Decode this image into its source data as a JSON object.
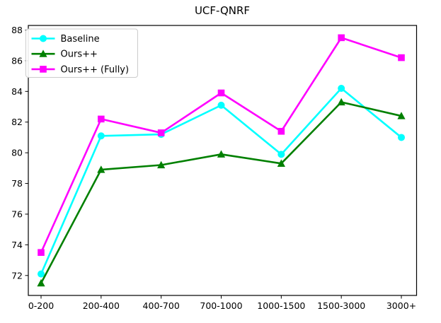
{
  "figure": {
    "background_color": "#ffffff",
    "axis_color": "#000000"
  },
  "chart_data": {
    "type": "line",
    "title": "UCF-QNRF",
    "xlabel": "",
    "ylabel": "",
    "categories": [
      "0-200",
      "200-400",
      "400-700",
      "700-1000",
      "1000-1500",
      "1500-3000",
      "3000+"
    ],
    "series": [
      {
        "name": "Baseline",
        "color": "#00ffff",
        "marker": "circle",
        "values": [
          72.1,
          81.1,
          81.2,
          83.1,
          79.9,
          84.2,
          81.0
        ]
      },
      {
        "name": "Ours++",
        "color": "#008000",
        "marker": "triangle",
        "values": [
          71.5,
          78.9,
          79.2,
          79.9,
          79.3,
          83.3,
          82.4
        ]
      },
      {
        "name": "Ours++ (Fully)",
        "color": "#ff00ff",
        "marker": "square",
        "values": [
          73.5,
          82.2,
          81.3,
          83.9,
          81.4,
          87.5,
          86.2
        ]
      }
    ],
    "ylim": [
      70.7,
      88.3
    ],
    "yticks": [
      72,
      74,
      76,
      78,
      80,
      82,
      84,
      86,
      88
    ],
    "grid": false,
    "legend_position": "upper left",
    "legend_border_color": "#cccccc",
    "legend_background": "#ffffff"
  }
}
